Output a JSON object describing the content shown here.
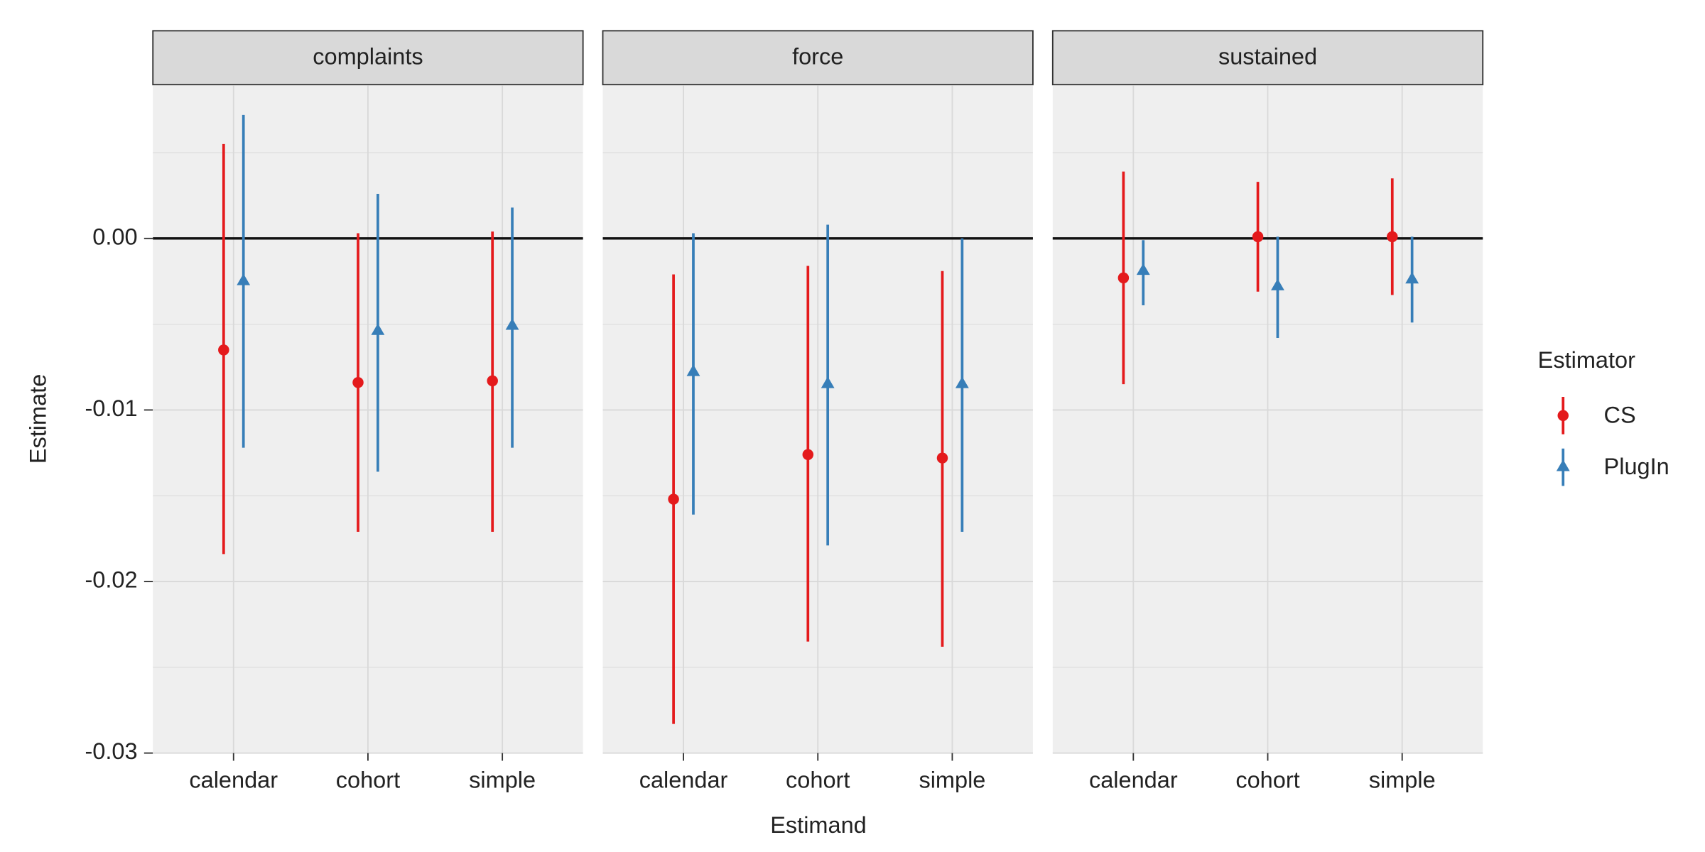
{
  "chart_data": {
    "type": "pointrange",
    "x_label": "Estimand",
    "y_label": "Estimate",
    "legend_title": "Estimator",
    "legend_position": "right",
    "grid": true,
    "ylim": [
      -0.03,
      0.0089
    ],
    "yticks": [
      {
        "value": 0,
        "label": "0.00"
      },
      {
        "value": -0.01,
        "label": "-0.01"
      },
      {
        "value": -0.02,
        "label": "-0.02"
      },
      {
        "value": -0.03,
        "label": "-0.03"
      }
    ],
    "minor_yticks": [
      0.005,
      -0.005,
      -0.015,
      -0.025
    ],
    "reference_line": 0,
    "categories": [
      "calendar",
      "cohort",
      "simple"
    ],
    "series": [
      {
        "name": "CS",
        "color": "#e41a1c",
        "marker": "circle"
      },
      {
        "name": "PlugIn",
        "color": "#377eb8",
        "marker": "triangle"
      }
    ],
    "panels": [
      {
        "title": "complaints",
        "series": [
          {
            "values": [
              -0.0065,
              -0.0084,
              -0.0083
            ],
            "lower": [
              -0.0184,
              -0.0171,
              -0.0171
            ],
            "upper": [
              0.0055,
              0.0003,
              0.0004
            ]
          },
          {
            "values": [
              -0.0025,
              -0.0054,
              -0.0051
            ],
            "lower": [
              -0.0122,
              -0.0136,
              -0.0122
            ],
            "upper": [
              0.0072,
              0.0026,
              0.0018
            ]
          }
        ]
      },
      {
        "title": "force",
        "series": [
          {
            "values": [
              -0.0152,
              -0.0126,
              -0.0128
            ],
            "lower": [
              -0.0283,
              -0.0235,
              -0.0238
            ],
            "upper": [
              -0.0021,
              -0.0016,
              -0.0019
            ]
          },
          {
            "values": [
              -0.0078,
              -0.0085,
              -0.0085
            ],
            "lower": [
              -0.0161,
              -0.0179,
              -0.0171
            ],
            "upper": [
              0.0003,
              0.0008,
              0.0
            ]
          }
        ]
      },
      {
        "title": "sustained",
        "series": [
          {
            "values": [
              -0.0023,
              0.0001,
              0.0001
            ],
            "lower": [
              -0.0085,
              -0.0031,
              -0.0033
            ],
            "upper": [
              0.0039,
              0.0033,
              0.0035
            ]
          },
          {
            "values": [
              -0.0019,
              -0.0028,
              -0.0024
            ],
            "lower": [
              -0.0039,
              -0.0058,
              -0.0049
            ],
            "upper": [
              -0.0001,
              0.0001,
              0.0001
            ]
          }
        ]
      }
    ]
  }
}
